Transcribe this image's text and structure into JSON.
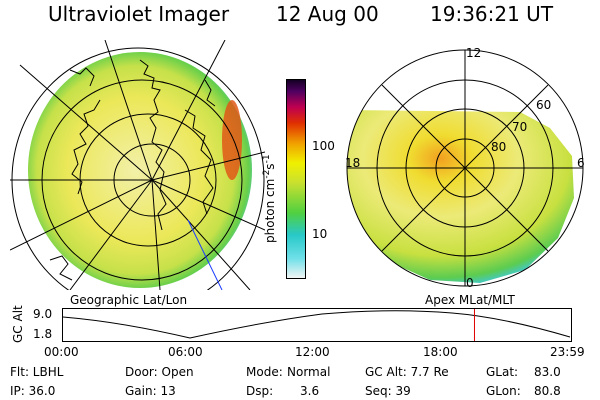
{
  "header": {
    "title": "Ultraviolet Imager",
    "date": "12 Aug 00",
    "time": "19:36:21 UT"
  },
  "panels": {
    "left_caption": "Geographic Lat/Lon",
    "right_caption": "Apex MLat/MLT"
  },
  "colorbar": {
    "unit_base": "photon cm",
    "unit_exp1": "-2",
    "unit_s": "s",
    "unit_exp2": "-1",
    "tick_high": "100",
    "tick_low": "10"
  },
  "polar_labels": {
    "mlt_12": "12",
    "mlt_18": "18",
    "mlt_6": "6",
    "mlt_0": "0",
    "lat_60": "60",
    "lat_70": "70",
    "lat_80": "80"
  },
  "altitude_plot": {
    "ylabel": "GC Alt",
    "y_high": "9.0",
    "y_low": "1.8",
    "times": [
      "00:00",
      "06:00",
      "12:00",
      "18:00",
      "23:59"
    ],
    "current_time_fraction": 0.81
  },
  "info": {
    "row1": [
      "Flt: LBHL",
      "Door: Open",
      "Mode:",
      "Normal",
      "GC Alt: 7.7 Re",
      "GLat:",
      "83.0"
    ],
    "row2": [
      "IP: 36.0",
      "Gain: 13",
      "Dsp:",
      "3.6",
      "Seq: 39",
      "GLon:",
      "80.8"
    ]
  },
  "colors": {
    "marker": "#e00000",
    "emission_core": "#f0e000",
    "emission_edge": "#6cd22b"
  }
}
